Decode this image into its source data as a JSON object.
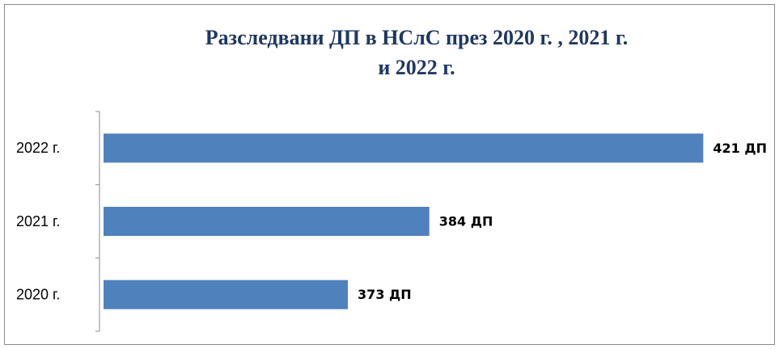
{
  "chart_data": {
    "type": "bar",
    "orientation": "horizontal",
    "title": [
      "Разследвани ДП в НСлС през 2020 г. , 2021 г.",
      "и 2022 г."
    ],
    "categories": [
      "2022 г.",
      "2021 г.",
      "2020 г."
    ],
    "values": [
      421,
      384,
      373
    ],
    "value_labels": [
      "421 ДП",
      "384 ДП",
      "373 ДП"
    ],
    "color": "#4f81bd",
    "xlim": [
      340,
      425
    ]
  }
}
